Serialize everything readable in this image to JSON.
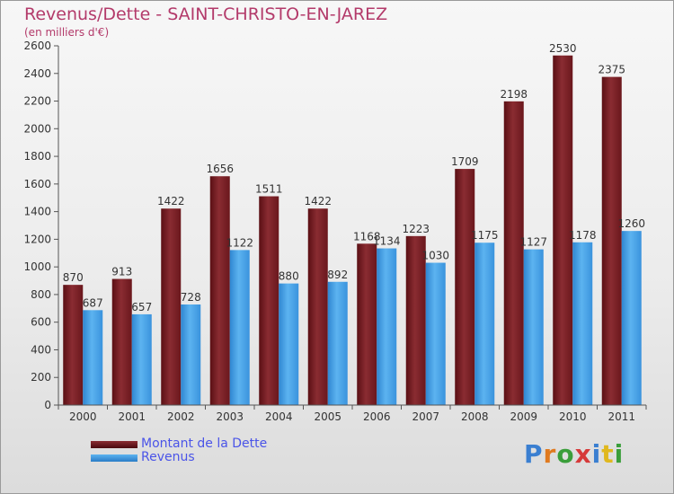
{
  "header": {
    "title": "Revenus/Dette - SAINT-CHRISTO-EN-JAREZ",
    "subtitle": "(en milliers d'€)"
  },
  "logo": {
    "text": "Proxiti",
    "letters": [
      {
        "ch": "P",
        "color": "#3a7fd1"
      },
      {
        "ch": "r",
        "color": "#e07a1f"
      },
      {
        "ch": "o",
        "color": "#3a9e3a"
      },
      {
        "ch": "x",
        "color": "#d63a3a"
      },
      {
        "ch": "i",
        "color": "#3a7fd1"
      },
      {
        "ch": "t",
        "color": "#e0b81f"
      },
      {
        "ch": "i",
        "color": "#3a9e3a"
      }
    ]
  },
  "chart_data": {
    "type": "bar",
    "title": "Revenus/Dette - SAINT-CHRISTO-EN-JAREZ",
    "subtitle": "(en milliers d'€)",
    "categories": [
      "2000",
      "2001",
      "2002",
      "2003",
      "2004",
      "2005",
      "2006",
      "2007",
      "2008",
      "2009",
      "2010",
      "2011"
    ],
    "series": [
      {
        "name": "Montant de la Dette",
        "color": "#7a1f24",
        "values": [
          870,
          913,
          1422,
          1656,
          1511,
          1422,
          1168,
          1223,
          1709,
          2198,
          2530,
          2375
        ]
      },
      {
        "name": "Revenus",
        "color": "#4aa3e6",
        "values": [
          687,
          657,
          728,
          1122,
          880,
          892,
          1134,
          1030,
          1175,
          1127,
          1178,
          1260
        ]
      }
    ],
    "ylim": [
      0,
      2600
    ],
    "yticks": [
      0,
      200,
      400,
      600,
      800,
      1000,
      1200,
      1400,
      1600,
      1800,
      2000,
      2200,
      2400,
      2600
    ],
    "grid": false,
    "legend": "bottom-left"
  }
}
